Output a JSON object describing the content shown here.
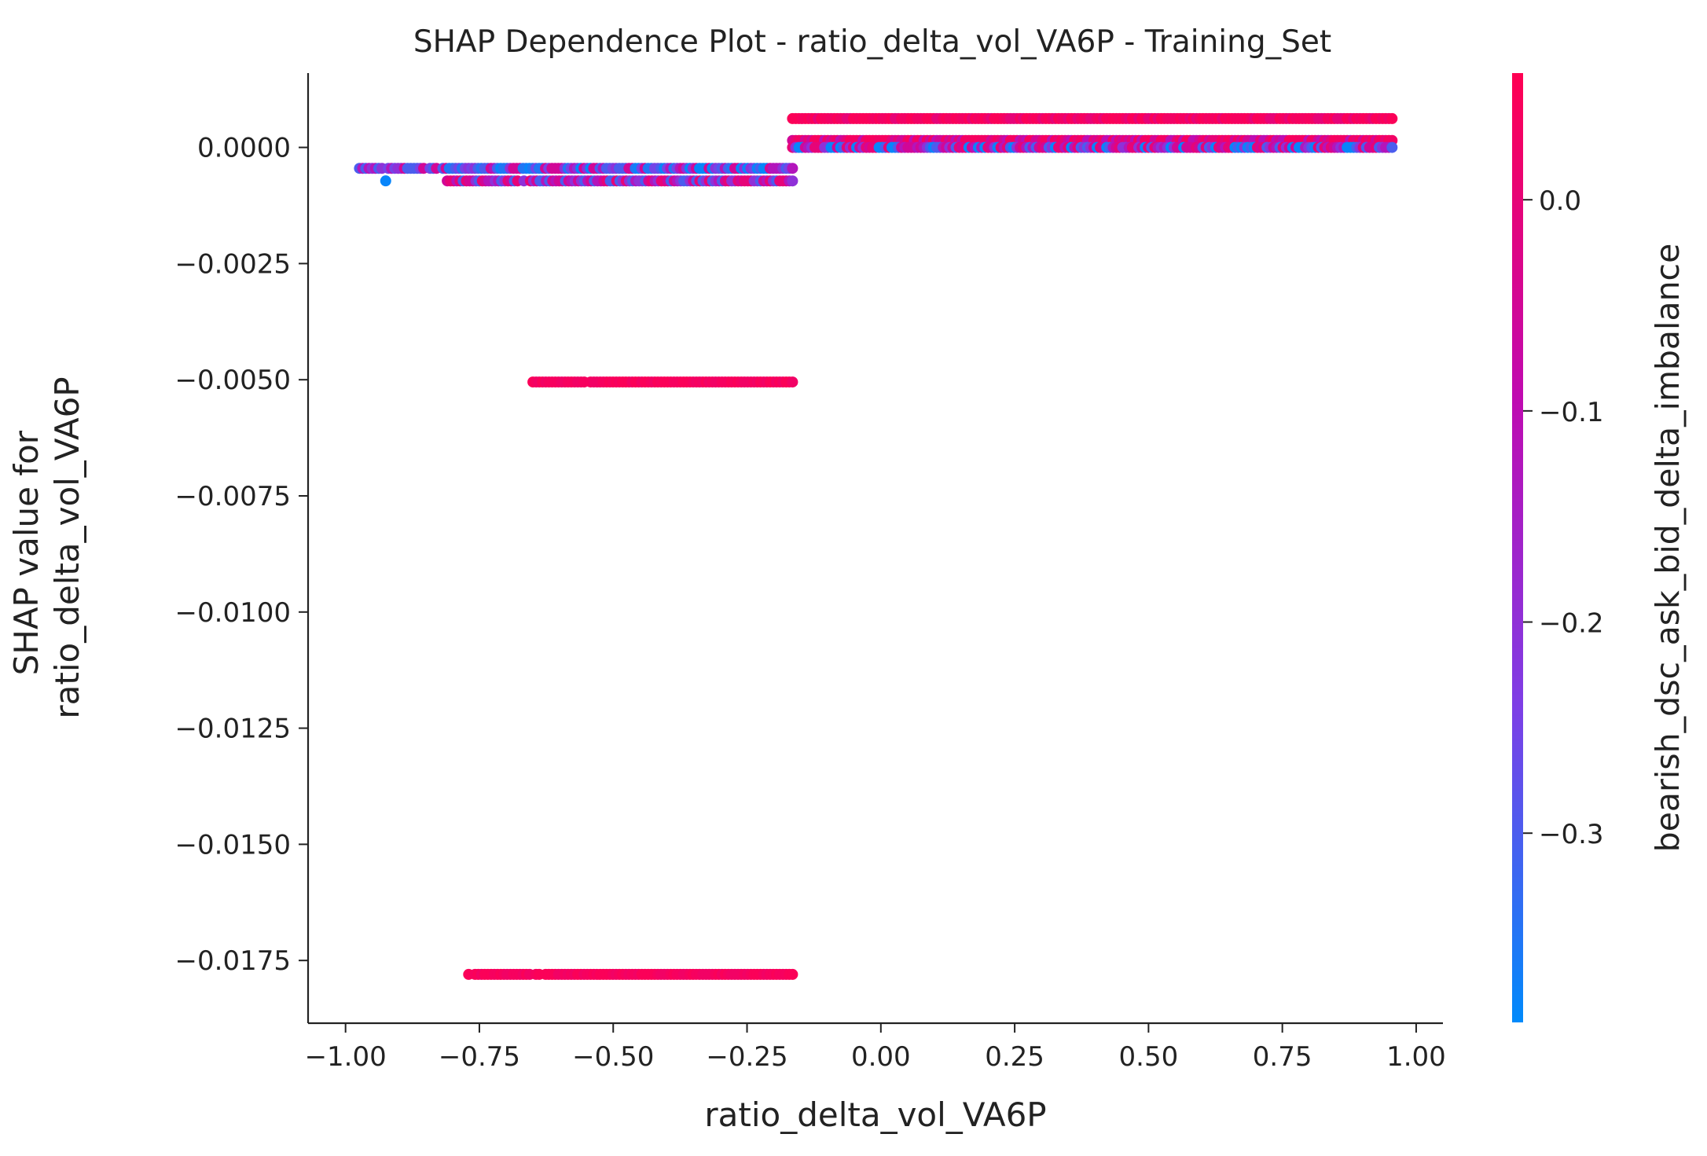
{
  "chart_data": {
    "type": "scatter",
    "title": "SHAP Dependence Plot - ratio_delta_vol_VA6P - Training_Set",
    "xlabel": "ratio_delta_vol_VA6P",
    "ylabel_lines": [
      "SHAP value for",
      "ratio_delta_vol_VA6P"
    ],
    "xlim": [
      -1.07,
      1.05
    ],
    "ylim": [
      -0.01885,
      0.0016
    ],
    "x_ticks": [
      -1.0,
      -0.75,
      -0.5,
      -0.25,
      0.0,
      0.25,
      0.5,
      0.75,
      1.0
    ],
    "x_tick_labels": [
      "−1.00",
      "−0.75",
      "−0.50",
      "−0.25",
      "0.00",
      "0.25",
      "0.50",
      "0.75",
      "1.00"
    ],
    "y_ticks": [
      0.0,
      -0.0025,
      -0.005,
      -0.0075,
      -0.01,
      -0.0125,
      -0.015,
      -0.0175
    ],
    "y_tick_labels": [
      "0.0000",
      "−0.0025",
      "−0.0050",
      "−0.0075",
      "−0.0100",
      "−0.0125",
      "−0.0150",
      "−0.0175"
    ],
    "colorbar": {
      "label": "bearish_dsc_ask_bid_delta_imbalance",
      "range": [
        -0.39,
        0.06
      ],
      "ticks": [
        0.0,
        -0.1,
        -0.2,
        -0.3
      ],
      "tick_labels": [
        "0.0",
        "−0.1",
        "−0.2",
        "−0.3"
      ],
      "colors": [
        "#008afb",
        "#7d3fe6",
        "#c00ab0",
        "#ff0052"
      ]
    },
    "bands": [
      {
        "x_range": [
          -0.98,
          -0.165
        ],
        "y": -0.00045,
        "color_values": [
          -0.38,
          -0.35,
          -0.3,
          -0.25,
          -0.2,
          -0.12,
          -0.05
        ],
        "density": 0.006
      },
      {
        "x_range": [
          -0.81,
          -0.165
        ],
        "y": -0.00072,
        "color_values": [
          -0.3,
          -0.2,
          -0.12,
          -0.05,
          0.0
        ],
        "density": 0.006
      },
      {
        "x_range": [
          -0.65,
          -0.165
        ],
        "y": -0.00505,
        "color_values": [
          0.03,
          0.04,
          0.05
        ],
        "density": 0.006
      },
      {
        "x_range": [
          -0.77,
          -0.165
        ],
        "y": -0.0178,
        "color_values": [
          0.03,
          0.04,
          0.05
        ],
        "density": 0.006
      },
      {
        "x_range": [
          -0.165,
          0.955
        ],
        "y": 0.00062,
        "color_values": [
          0.03,
          0.04,
          0.05,
          0.0
        ],
        "density": 0.006
      },
      {
        "x_range": [
          -0.165,
          0.955
        ],
        "y": 0.00015,
        "color_values": [
          0.0,
          0.03,
          -0.05,
          -0.1,
          0.04
        ],
        "density": 0.006
      },
      {
        "x_range": [
          -0.165,
          0.955
        ],
        "y": 0.0,
        "color_values": [
          -0.3,
          -0.2,
          -0.12,
          -0.05,
          0.0,
          -0.38
        ],
        "density": 0.006
      }
    ],
    "outliers": [
      {
        "x": -0.925,
        "y": -0.00072,
        "c": -0.38
      }
    ],
    "grid": false
  }
}
